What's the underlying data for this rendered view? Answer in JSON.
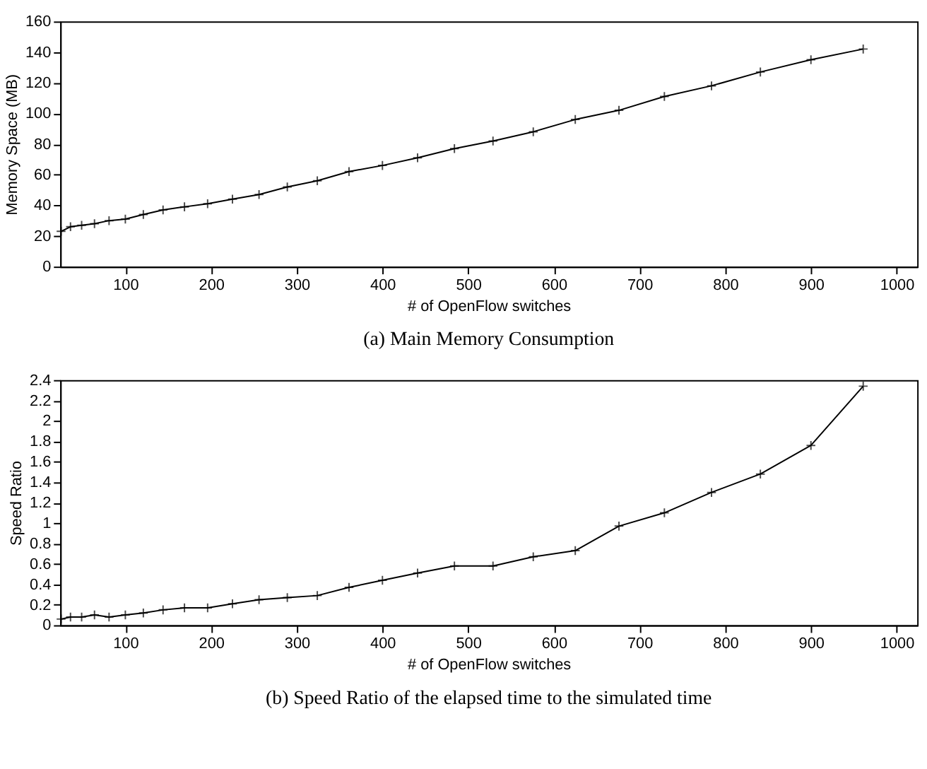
{
  "chart_data": [
    {
      "type": "line",
      "title": "(a) Main Memory Consumption",
      "xlabel": "# of OpenFlow switches",
      "ylabel": "Memory Space (MB)",
      "x": [
        25,
        36,
        49,
        64,
        81,
        100,
        121,
        144,
        169,
        196,
        225,
        256,
        289,
        324,
        361,
        400,
        441,
        484,
        529,
        576,
        625,
        676,
        729,
        784,
        841,
        900,
        961
      ],
      "series": [
        {
          "color": "#000000",
          "values": [
            23,
            26,
            27,
            28,
            30,
            31,
            34,
            37,
            39,
            41,
            44,
            47,
            52,
            56,
            62,
            66,
            71,
            77,
            82,
            88,
            96,
            102,
            111,
            118,
            127,
            135,
            142
          ]
        }
      ],
      "xlim": [
        24,
        1024
      ],
      "xticks": [
        100,
        200,
        300,
        400,
        500,
        600,
        700,
        800,
        900,
        1000
      ],
      "ylim": [
        0,
        160
      ],
      "yticks": [
        0,
        20,
        40,
        60,
        80,
        100,
        120,
        140,
        160
      ],
      "grid": false,
      "marker": "cross",
      "line_style": "solid"
    },
    {
      "type": "line",
      "title": "(b) Speed Ratio of the elapsed time to the simulated time",
      "xlabel": "# of OpenFlow switches",
      "ylabel": "Speed Ratio",
      "x": [
        25,
        36,
        49,
        64,
        81,
        100,
        121,
        144,
        169,
        196,
        225,
        256,
        289,
        324,
        361,
        400,
        441,
        484,
        529,
        576,
        625,
        676,
        729,
        784,
        841,
        900,
        961
      ],
      "series": [
        {
          "color": "#000000",
          "values": [
            0.06,
            0.08,
            0.08,
            0.1,
            0.08,
            0.1,
            0.12,
            0.15,
            0.17,
            0.17,
            0.21,
            0.25,
            0.27,
            0.29,
            0.37,
            0.44,
            0.51,
            0.58,
            0.58,
            0.67,
            0.73,
            0.97,
            1.1,
            1.3,
            1.48,
            1.76,
            2.34
          ]
        }
      ],
      "xlim": [
        24,
        1024
      ],
      "xticks": [
        100,
        200,
        300,
        400,
        500,
        600,
        700,
        800,
        900,
        1000
      ],
      "ylim": [
        0,
        2.4
      ],
      "yticks": [
        0,
        0.2,
        0.4,
        0.6,
        0.8,
        1,
        1.2,
        1.4,
        1.6,
        1.8,
        2,
        2.2,
        2.4
      ],
      "grid": false,
      "marker": "cross",
      "line_style": "solid"
    }
  ]
}
